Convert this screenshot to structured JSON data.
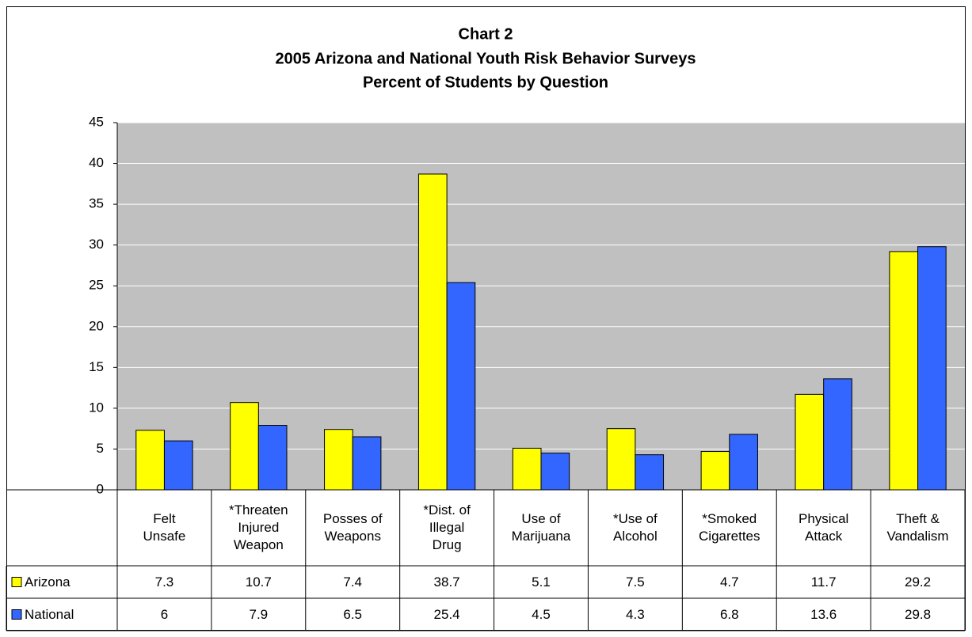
{
  "chart_data": {
    "type": "bar",
    "title": [
      "Chart 2",
      "2005 Arizona and National Youth Risk Behavior Surveys",
      "Percent of Students by Question"
    ],
    "categories": [
      "Felt Unsafe",
      "*Threaten Injured Weapon",
      "Posses of Weapons",
      "*Dist. of Illegal Drug",
      "Use of Marijuana",
      "*Use of Alcohol",
      "*Smoked Cigarettes",
      "Physical Attack",
      "Theft & Vandalism"
    ],
    "series": [
      {
        "name": "Arizona",
        "color": "#ffff00",
        "values": [
          7.3,
          10.7,
          7.4,
          38.7,
          5.1,
          7.5,
          4.7,
          11.7,
          29.2
        ]
      },
      {
        "name": "National",
        "color": "#3366ff",
        "values": [
          6,
          7.9,
          6.5,
          25.4,
          4.5,
          4.3,
          6.8,
          13.6,
          29.8
        ]
      }
    ],
    "ylim": [
      0,
      45
    ],
    "yticks": [
      0,
      5,
      10,
      15,
      20,
      25,
      30,
      35,
      40,
      45
    ],
    "grid": true
  }
}
